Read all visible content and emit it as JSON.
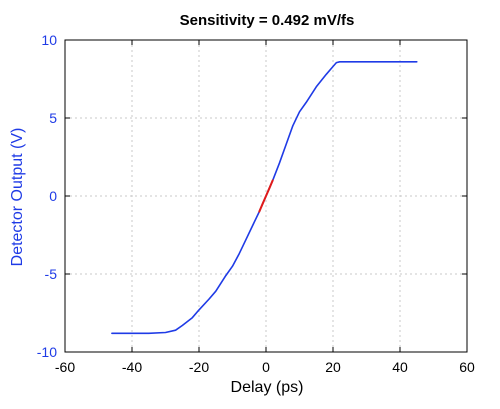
{
  "chart_data": {
    "type": "line",
    "title": "Sensitivity = 0.492 mV/fs",
    "xlabel": "Delay (ps)",
    "ylabel": "Detector Output (V)",
    "xlim": [
      -60,
      60
    ],
    "ylim": [
      -10,
      10
    ],
    "xticks": [
      "-60",
      "-40",
      "-20",
      "0",
      "20",
      "40",
      "60"
    ],
    "yticks": [
      "10",
      "5",
      "0",
      "-5",
      "-10"
    ],
    "grid": true,
    "colors": {
      "trace": "#1f3be6",
      "highlight": "#e01a1a",
      "y_axis_text": "#1f3be6",
      "grid": "#c8c8c8"
    },
    "series": [
      {
        "color": "#1f3be6",
        "x": [
          -46,
          -40,
          -35,
          -30,
          -27,
          -25,
          -22,
          -20,
          -17,
          -15,
          -12,
          -10,
          -8,
          -6,
          -4,
          -2,
          0,
          2,
          4,
          6,
          8,
          10,
          12,
          15,
          18,
          20,
          21,
          22,
          25,
          30,
          35,
          40,
          45
        ],
        "y": [
          -8.8,
          -8.8,
          -8.8,
          -8.75,
          -8.6,
          -8.3,
          -7.8,
          -7.3,
          -6.6,
          -6.1,
          -5.1,
          -4.5,
          -3.7,
          -2.8,
          -1.9,
          -1.0,
          0.0,
          1.0,
          2.1,
          3.3,
          4.5,
          5.4,
          6.0,
          7.0,
          7.8,
          8.3,
          8.55,
          8.6,
          8.6,
          8.6,
          8.6,
          8.6,
          8.6
        ]
      },
      {
        "color": "#e01a1a",
        "x": [
          -2,
          -1,
          0,
          1,
          2
        ],
        "y": [
          -1.0,
          -0.5,
          0.0,
          0.5,
          1.0
        ]
      }
    ]
  }
}
